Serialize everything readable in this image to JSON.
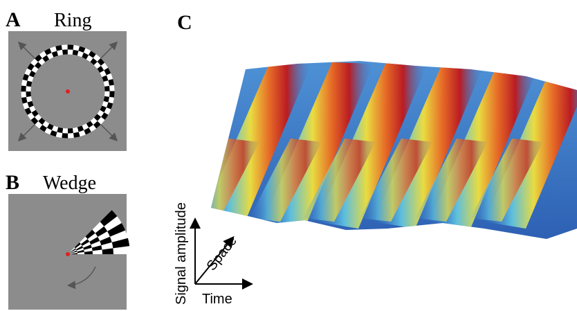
{
  "panels": [
    {
      "letter": "A",
      "title": "Ring"
    },
    {
      "letter": "B",
      "title": "Wedge"
    },
    {
      "letter": "C",
      "axes": {
        "y": "Signal amplitude",
        "depth": "Space",
        "x": "Time"
      }
    }
  ]
}
